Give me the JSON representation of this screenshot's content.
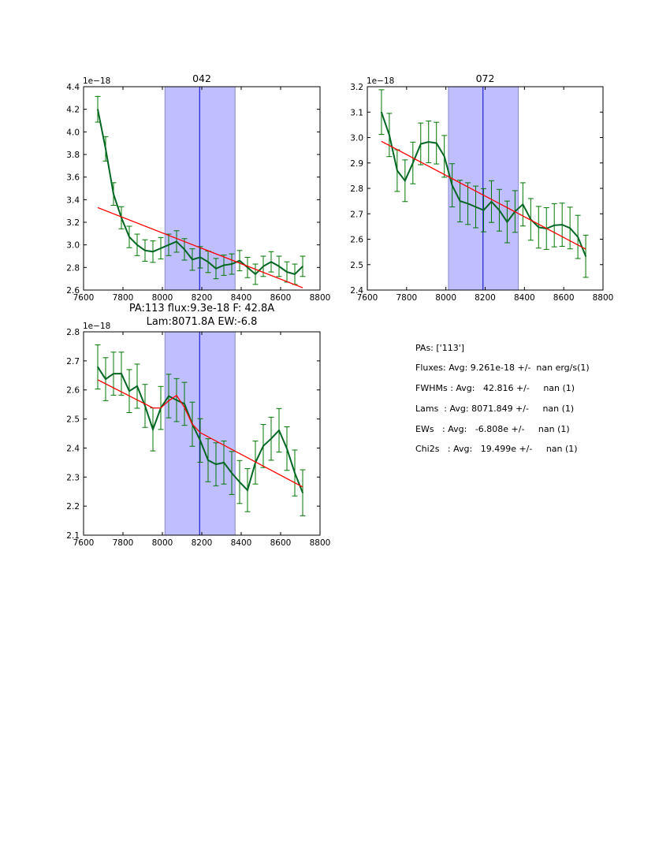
{
  "chart_data": [
    {
      "type": "line",
      "title": "042",
      "offset_label": "1e−18",
      "xlabel": "",
      "ylabel": "",
      "xlim": [
        7600,
        8800
      ],
      "ylim": [
        2.6,
        4.4
      ],
      "xticks": [
        "7600",
        "7800",
        "8000",
        "8200",
        "8400",
        "8600",
        "8800"
      ],
      "yticks": [
        "2.6",
        "2.8",
        "3.0",
        "3.2",
        "3.4",
        "3.6",
        "3.8",
        "4.0",
        "4.2",
        "4.4"
      ],
      "band": [
        8013,
        8369
      ],
      "center_line": 8189,
      "x": [
        7672,
        7712,
        7752,
        7792,
        7832,
        7872,
        7912,
        7952,
        7992,
        8032,
        8072,
        8112,
        8152,
        8192,
        8232,
        8272,
        8312,
        8352,
        8392,
        8432,
        8472,
        8512,
        8552,
        8592,
        8632,
        8672,
        8712
      ],
      "series": [
        {
          "name": "spectrum",
          "color": "#006622",
          "values": [
            4.2,
            3.85,
            3.45,
            3.24,
            3.07,
            3.0,
            2.95,
            2.94,
            2.97,
            3.0,
            3.03,
            2.96,
            2.87,
            2.89,
            2.85,
            2.79,
            2.82,
            2.83,
            2.86,
            2.8,
            2.74,
            2.81,
            2.85,
            2.81,
            2.76,
            2.74,
            2.81
          ],
          "errors": [
            0.114,
            0.108,
            0.1,
            0.098,
            0.095,
            0.095,
            0.095,
            0.095,
            0.095,
            0.095,
            0.095,
            0.095,
            0.095,
            0.095,
            0.095,
            0.09,
            0.09,
            0.09,
            0.09,
            0.09,
            0.09,
            0.09,
            0.09,
            0.09,
            0.09,
            0.09,
            0.09
          ]
        },
        {
          "name": "fit",
          "color": "#ff0000",
          "x": [
            7672,
            8712
          ],
          "values": [
            3.33,
            2.62
          ]
        }
      ]
    },
    {
      "type": "line",
      "title": "072",
      "offset_label": "1e−18",
      "xlabel": "",
      "ylabel": "",
      "xlim": [
        7600,
        8800
      ],
      "ylim": [
        2.4,
        3.2
      ],
      "xticks": [
        "7600",
        "7800",
        "8000",
        "8200",
        "8400",
        "8600",
        "8800"
      ],
      "yticks": [
        "2.4",
        "2.5",
        "2.6",
        "2.7",
        "2.8",
        "2.9",
        "3.0",
        "3.1",
        "3.2"
      ],
      "band": [
        8013,
        8369
      ],
      "center_line": 8189,
      "x": [
        7672,
        7712,
        7752,
        7792,
        7832,
        7872,
        7912,
        7952,
        7992,
        8032,
        8072,
        8112,
        8152,
        8192,
        8232,
        8272,
        8312,
        8352,
        8392,
        8432,
        8472,
        8512,
        8552,
        8592,
        8632,
        8672,
        8712
      ],
      "series": [
        {
          "name": "spectrum",
          "color": "#006622",
          "values": [
            3.1,
            3.01,
            2.87,
            2.83,
            2.9,
            2.975,
            2.983,
            2.978,
            2.926,
            2.812,
            2.75,
            2.74,
            2.727,
            2.714,
            2.748,
            2.714,
            2.668,
            2.709,
            2.737,
            2.678,
            2.647,
            2.642,
            2.655,
            2.657,
            2.644,
            2.609,
            2.533
          ],
          "errors": [
            0.088,
            0.085,
            0.082,
            0.082,
            0.082,
            0.082,
            0.082,
            0.082,
            0.082,
            0.085,
            0.082,
            0.082,
            0.082,
            0.085,
            0.082,
            0.082,
            0.082,
            0.082,
            0.085,
            0.082,
            0.082,
            0.082,
            0.085,
            0.085,
            0.082,
            0.085,
            0.083
          ]
        },
        {
          "name": "fit",
          "color": "#ff0000",
          "x": [
            7672,
            8712
          ],
          "values": [
            2.985,
            2.561
          ]
        }
      ]
    },
    {
      "type": "line",
      "title": "PA:113 flux:9.3e-18 F: 42.8A\nLam:8071.8A EW:-6.8",
      "title_lines": [
        "PA:113 flux:9.3e-18 F: 42.8A",
        "Lam:8071.8A EW:-6.8"
      ],
      "offset_label": "1e−18",
      "xlabel": "",
      "ylabel": "",
      "xlim": [
        7600,
        8800
      ],
      "ylim": [
        2.1,
        2.8
      ],
      "xticks": [
        "7600",
        "7800",
        "8000",
        "8200",
        "8400",
        "8600",
        "8800"
      ],
      "yticks": [
        "2.1",
        "2.2",
        "2.3",
        "2.4",
        "2.5",
        "2.6",
        "2.7",
        "2.8"
      ],
      "band": [
        8013,
        8369
      ],
      "center_line": 8189,
      "x": [
        7672,
        7712,
        7752,
        7792,
        7832,
        7872,
        7912,
        7952,
        7992,
        8032,
        8072,
        8112,
        8152,
        8192,
        8232,
        8272,
        8312,
        8352,
        8392,
        8432,
        8472,
        8512,
        8552,
        8592,
        8632,
        8672,
        8712
      ],
      "series": [
        {
          "name": "spectrum",
          "color": "#006622",
          "values": [
            2.679,
            2.637,
            2.656,
            2.656,
            2.596,
            2.613,
            2.545,
            2.464,
            2.538,
            2.579,
            2.565,
            2.552,
            2.482,
            2.426,
            2.358,
            2.344,
            2.35,
            2.314,
            2.283,
            2.255,
            2.35,
            2.407,
            2.432,
            2.461,
            2.398,
            2.314,
            2.246
          ],
          "errors": [
            0.076,
            0.074,
            0.074,
            0.074,
            0.074,
            0.076,
            0.074,
            0.074,
            0.074,
            0.075,
            0.074,
            0.074,
            0.076,
            0.075,
            0.074,
            0.074,
            0.074,
            0.074,
            0.074,
            0.074,
            0.074,
            0.074,
            0.074,
            0.075,
            0.075,
            0.079,
            0.079
          ]
        },
        {
          "name": "fit",
          "color": "#ff0000",
          "x": [
            7672,
            7952,
            7992,
            8032,
            8072,
            8112,
            8152,
            8192,
            8712
          ],
          "values": [
            2.635,
            2.538,
            2.538,
            2.563,
            2.581,
            2.54,
            2.482,
            2.453,
            2.266
          ]
        }
      ]
    }
  ],
  "summary": {
    "lines": [
      "PAs: ['113']",
      "Fluxes: Avg: 9.261e-18 +/-  nan erg/s(1)",
      "FWHMs : Avg:   42.816 +/-     nan (1)",
      "Lams  : Avg: 8071.849 +/-     nan (1)",
      "EWs   : Avg:   -6.808e +/-     nan (1)",
      "Chi2s   : Avg:   19.499e +/-     nan (1)"
    ]
  },
  "colors": {
    "band_fill": "#bfbfff",
    "band_edge": "#8c8ccc",
    "center_line": "#0000cc",
    "spectrum": "#006622",
    "errorbar": "#007700",
    "fit": "#ff0000"
  }
}
